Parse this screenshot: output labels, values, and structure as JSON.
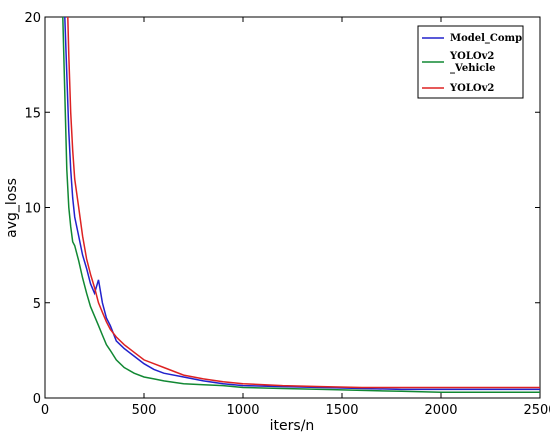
{
  "chart_data": {
    "type": "line",
    "title": "",
    "xlabel": "iters/n",
    "ylabel": "avg_loss",
    "xlim": [
      0,
      2500
    ],
    "ylim": [
      0,
      20
    ],
    "xticks": [
      0,
      500,
      1000,
      1500,
      2000,
      2500
    ],
    "yticks": [
      0,
      5,
      10,
      15,
      20
    ],
    "grid": false,
    "legend_position": "top-right",
    "series": [
      {
        "name": "Model_Comp",
        "color": "#2222cc",
        "x": [
          100,
          110,
          120,
          130,
          140,
          150,
          170,
          190,
          210,
          230,
          250,
          270,
          290,
          310,
          330,
          360,
          400,
          450,
          500,
          550,
          600,
          700,
          800,
          900,
          1000,
          1200,
          1400,
          1600,
          1800,
          2000,
          2200,
          2400,
          2500
        ],
        "y": [
          20,
          17,
          14,
          12,
          10.5,
          9.5,
          8.5,
          7.5,
          6.8,
          6.0,
          5.5,
          6.2,
          5.0,
          4.2,
          3.8,
          3.0,
          2.6,
          2.2,
          1.8,
          1.5,
          1.3,
          1.1,
          0.9,
          0.75,
          0.65,
          0.6,
          0.55,
          0.5,
          0.45,
          0.45,
          0.45,
          0.45,
          0.45
        ]
      },
      {
        "name": "YOLOv2\n_Vehicle",
        "color": "#118833",
        "x": [
          90,
          100,
          110,
          120,
          130,
          140,
          150,
          170,
          190,
          210,
          230,
          250,
          270,
          290,
          310,
          330,
          360,
          400,
          450,
          500,
          550,
          600,
          700,
          800,
          900,
          1000,
          1200,
          1400,
          1600,
          1800,
          2000,
          2200,
          2400,
          2500
        ],
        "y": [
          20,
          16,
          12,
          10,
          9,
          8.2,
          8.0,
          7.2,
          6.3,
          5.5,
          4.8,
          4.3,
          3.8,
          3.3,
          2.8,
          2.5,
          2.0,
          1.6,
          1.3,
          1.1,
          1.0,
          0.9,
          0.75,
          0.7,
          0.65,
          0.55,
          0.5,
          0.45,
          0.4,
          0.35,
          0.3,
          0.3,
          0.3,
          0.3
        ]
      },
      {
        "name": "YOLOv2",
        "color": "#dd2222",
        "x": [
          115,
          120,
          130,
          140,
          150,
          170,
          190,
          210,
          230,
          250,
          270,
          290,
          310,
          330,
          360,
          400,
          450,
          500,
          550,
          600,
          700,
          800,
          900,
          1000,
          1200,
          1400,
          1600,
          1800,
          2000,
          2200,
          2400,
          2500
        ],
        "y": [
          20,
          18,
          15,
          13,
          11.5,
          10,
          8.5,
          7.3,
          6.5,
          5.8,
          5.0,
          4.5,
          4.0,
          3.6,
          3.2,
          2.8,
          2.4,
          2.0,
          1.8,
          1.6,
          1.2,
          1.0,
          0.85,
          0.75,
          0.65,
          0.6,
          0.55,
          0.55,
          0.55,
          0.55,
          0.55,
          0.55
        ]
      }
    ]
  }
}
